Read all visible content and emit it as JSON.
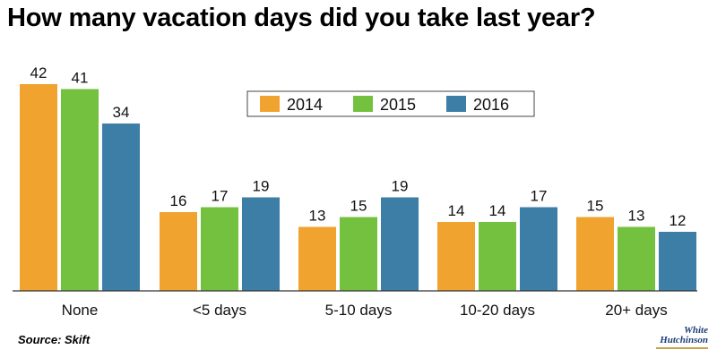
{
  "chart_data": {
    "type": "bar",
    "title": "How many vacation days did you take last year?",
    "categories": [
      "None",
      "<5 days",
      "5-10 days",
      "10-20 days",
      "20+ days"
    ],
    "series": [
      {
        "name": "2014",
        "color": "#f0a32f",
        "values": [
          42,
          16,
          13,
          14,
          15
        ]
      },
      {
        "name": "2015",
        "color": "#74c13f",
        "values": [
          41,
          17,
          15,
          14,
          13
        ]
      },
      {
        "name": "2016",
        "color": "#3c7ea5",
        "values": [
          34,
          19,
          19,
          17,
          12
        ]
      }
    ],
    "ylim": [
      0,
      48
    ],
    "grid": false,
    "legend": "top-center",
    "source": "Source: Skift"
  },
  "logo": {
    "line1": "White",
    "line2": "Hutchinson"
  }
}
